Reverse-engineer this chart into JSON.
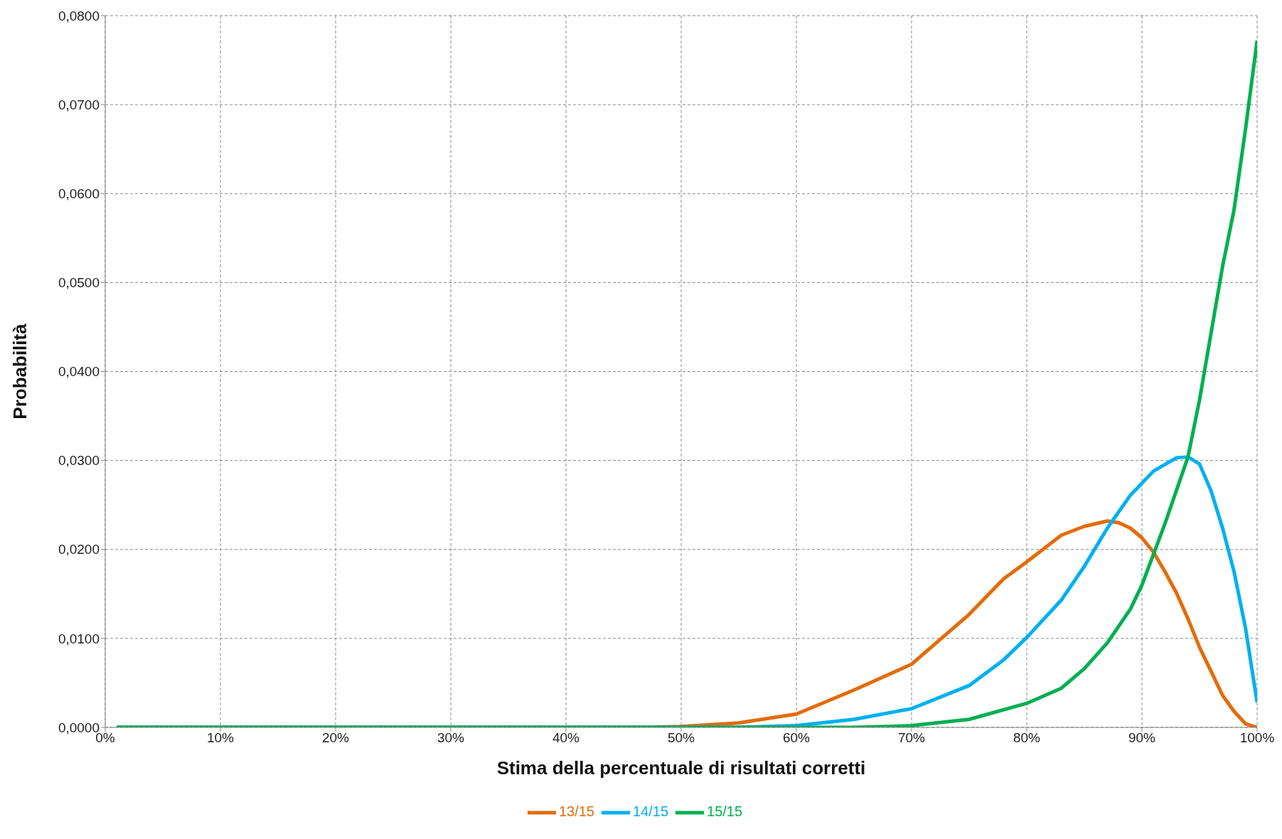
{
  "chart_data": {
    "type": "line",
    "xlabel": "Stima della percentuale di risultati corretti",
    "ylabel": "Probabilità",
    "xlim": [
      0,
      100
    ],
    "xticks": [
      {
        "value": 0,
        "label": "0%"
      },
      {
        "value": 10,
        "label": "10%"
      },
      {
        "value": 20,
        "label": "20%"
      },
      {
        "value": 30,
        "label": "30%"
      },
      {
        "value": 40,
        "label": "40%"
      },
      {
        "value": 50,
        "label": "50%"
      },
      {
        "value": 60,
        "label": "60%"
      },
      {
        "value": 70,
        "label": "70%"
      },
      {
        "value": 80,
        "label": "80%"
      },
      {
        "value": 90,
        "label": "90%"
      },
      {
        "value": 100,
        "label": "100%"
      }
    ],
    "ylim": [
      0,
      0.08
    ],
    "yticks": [
      {
        "value": 0,
        "label": "0,0000"
      },
      {
        "value": 0.01,
        "label": "0,0100"
      },
      {
        "value": 0.02,
        "label": "0,0200"
      },
      {
        "value": 0.03,
        "label": "0,0300"
      },
      {
        "value": 0.04,
        "label": "0,0400"
      },
      {
        "value": 0.05,
        "label": "0,0500"
      },
      {
        "value": 0.06,
        "label": "0,0600"
      },
      {
        "value": 0.07,
        "label": "0,0700"
      },
      {
        "value": 0.08,
        "label": "0,0800"
      }
    ],
    "grid": true,
    "legend": "bottom",
    "marker": "none",
    "line_style": "solid",
    "series": [
      {
        "name": "13/15",
        "color": "#e36c0a",
        "x": [
          1,
          47,
          50,
          55,
          60,
          65,
          70,
          75,
          78,
          80,
          83,
          85,
          87,
          88,
          89,
          90,
          91,
          92,
          93,
          94,
          95,
          96,
          97,
          98,
          99,
          100
        ],
        "values": [
          0,
          0,
          0.0001,
          0.0005,
          0.0015,
          0.0042,
          0.0071,
          0.0127,
          0.0167,
          0.0186,
          0.0216,
          0.0226,
          0.0232,
          0.023,
          0.0224,
          0.0213,
          0.0197,
          0.0175,
          0.0151,
          0.0122,
          0.009,
          0.0063,
          0.0036,
          0.0018,
          0.0004,
          0
        ]
      },
      {
        "name": "14/15",
        "color": "#00b0f0",
        "x": [
          1,
          55,
          60,
          65,
          70,
          75,
          78,
          80,
          83,
          85,
          87,
          89,
          91,
          93,
          94,
          95,
          96,
          97,
          98,
          99,
          100
        ],
        "values": [
          0,
          0,
          0.0002,
          0.0009,
          0.0021,
          0.0047,
          0.0076,
          0.0101,
          0.0143,
          0.0181,
          0.0224,
          0.0261,
          0.0288,
          0.0303,
          0.0304,
          0.0296,
          0.0266,
          0.0224,
          0.0175,
          0.0111,
          0.0028
        ]
      },
      {
        "name": "15/15",
        "color": "#00b050",
        "x": [
          1,
          65,
          68,
          70,
          75,
          80,
          83,
          85,
          87,
          89,
          90,
          92,
          94,
          95,
          96,
          97,
          98,
          99,
          100
        ],
        "values": [
          0,
          0,
          0.0001,
          0.0002,
          0.0009,
          0.0027,
          0.0044,
          0.0066,
          0.0095,
          0.0133,
          0.016,
          0.0229,
          0.0304,
          0.0368,
          0.0443,
          0.0518,
          0.0582,
          0.0673,
          0.0772
        ]
      }
    ]
  }
}
